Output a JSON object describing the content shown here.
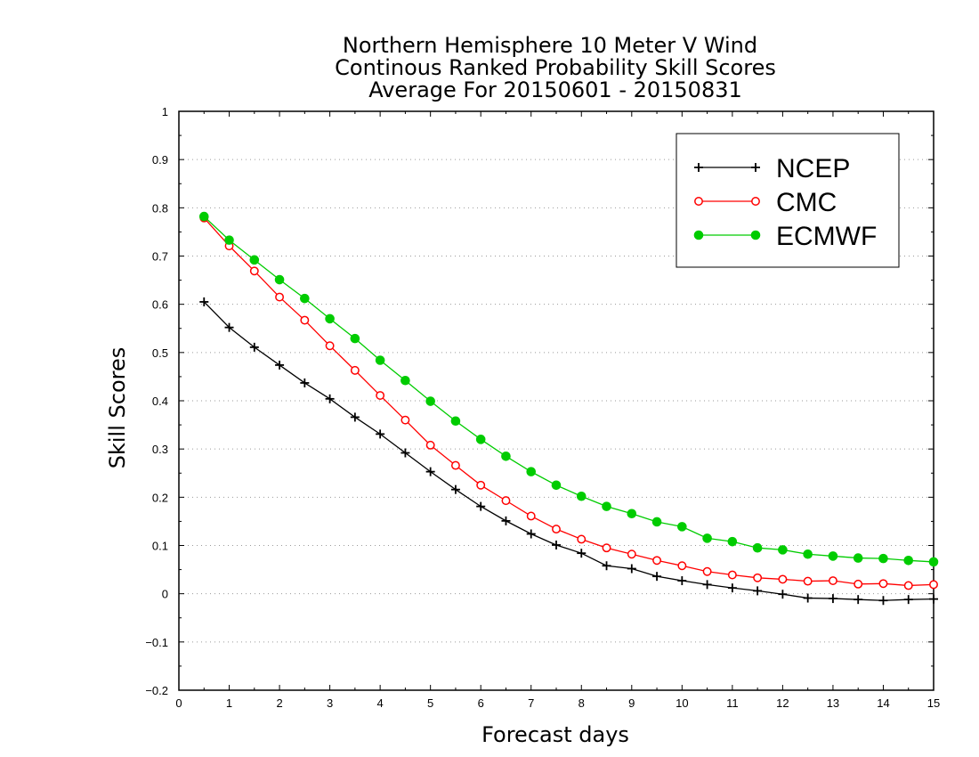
{
  "chart_data": {
    "type": "line",
    "title": [
      "Northern Hemisphere 10 Meter V Wind",
      "Continous Ranked Probability Skill Scores",
      "Average For 20150601 - 20150831"
    ],
    "xlabel": "Forecast days",
    "ylabel": "Skill Scores",
    "xlim": [
      0,
      15
    ],
    "ylim": [
      -0.2,
      1
    ],
    "xticks": [
      0,
      1,
      2,
      3,
      4,
      5,
      6,
      7,
      8,
      9,
      10,
      11,
      12,
      13,
      14,
      15
    ],
    "xtick_labels": [
      "0",
      "1",
      "2",
      "3",
      "4",
      "5",
      "6",
      "7",
      "8",
      "9",
      "10",
      "11",
      "12",
      "13",
      "14",
      "15"
    ],
    "yticks": [
      -0.2,
      -0.1,
      0,
      0.1,
      0.2,
      0.3,
      0.4,
      0.5,
      0.6,
      0.7,
      0.8,
      0.9,
      1
    ],
    "ytick_labels": [
      "−0.2",
      "−0.1",
      "0",
      "0.1",
      "0.2",
      "0.3",
      "0.4",
      "0.5",
      "0.6",
      "0.7",
      "0.8",
      "0.9",
      "1"
    ],
    "grid": "horizontal dotted",
    "legend_position": "top-right",
    "x": [
      0.5,
      1,
      1.5,
      2,
      2.5,
      3,
      3.5,
      4,
      4.5,
      5,
      5.5,
      6,
      6.5,
      7,
      7.5,
      8,
      8.5,
      9,
      9.5,
      10,
      10.5,
      11,
      11.5,
      12,
      12.5,
      13,
      13.5,
      14,
      14.5,
      15
    ],
    "series": [
      {
        "name": "NCEP",
        "color": "#000000",
        "marker": "plus",
        "values": [
          0.605,
          0.552,
          0.511,
          0.474,
          0.437,
          0.404,
          0.366,
          0.331,
          0.292,
          0.253,
          0.216,
          0.181,
          0.151,
          0.124,
          0.101,
          0.084,
          0.058,
          0.052,
          0.036,
          0.027,
          0.019,
          0.012,
          0.006,
          -0.001,
          -0.009,
          -0.01,
          -0.012,
          -0.014,
          -0.012,
          -0.011
        ]
      },
      {
        "name": "CMC",
        "color": "#ff0000",
        "marker": "open-circle",
        "values": [
          0.779,
          0.721,
          0.669,
          0.615,
          0.567,
          0.514,
          0.463,
          0.411,
          0.36,
          0.308,
          0.266,
          0.225,
          0.193,
          0.161,
          0.134,
          0.113,
          0.095,
          0.082,
          0.069,
          0.058,
          0.046,
          0.039,
          0.033,
          0.03,
          0.026,
          0.027,
          0.02,
          0.021,
          0.017,
          0.019
        ]
      },
      {
        "name": "ECMWF",
        "color": "#00cc00",
        "marker": "filled-circle",
        "values": [
          0.782,
          0.733,
          0.692,
          0.651,
          0.612,
          0.57,
          0.529,
          0.484,
          0.442,
          0.399,
          0.358,
          0.32,
          0.285,
          0.253,
          0.225,
          0.202,
          0.181,
          0.166,
          0.149,
          0.139,
          0.115,
          0.108,
          0.095,
          0.091,
          0.082,
          0.078,
          0.074,
          0.073,
          0.069,
          0.066
        ]
      }
    ]
  }
}
